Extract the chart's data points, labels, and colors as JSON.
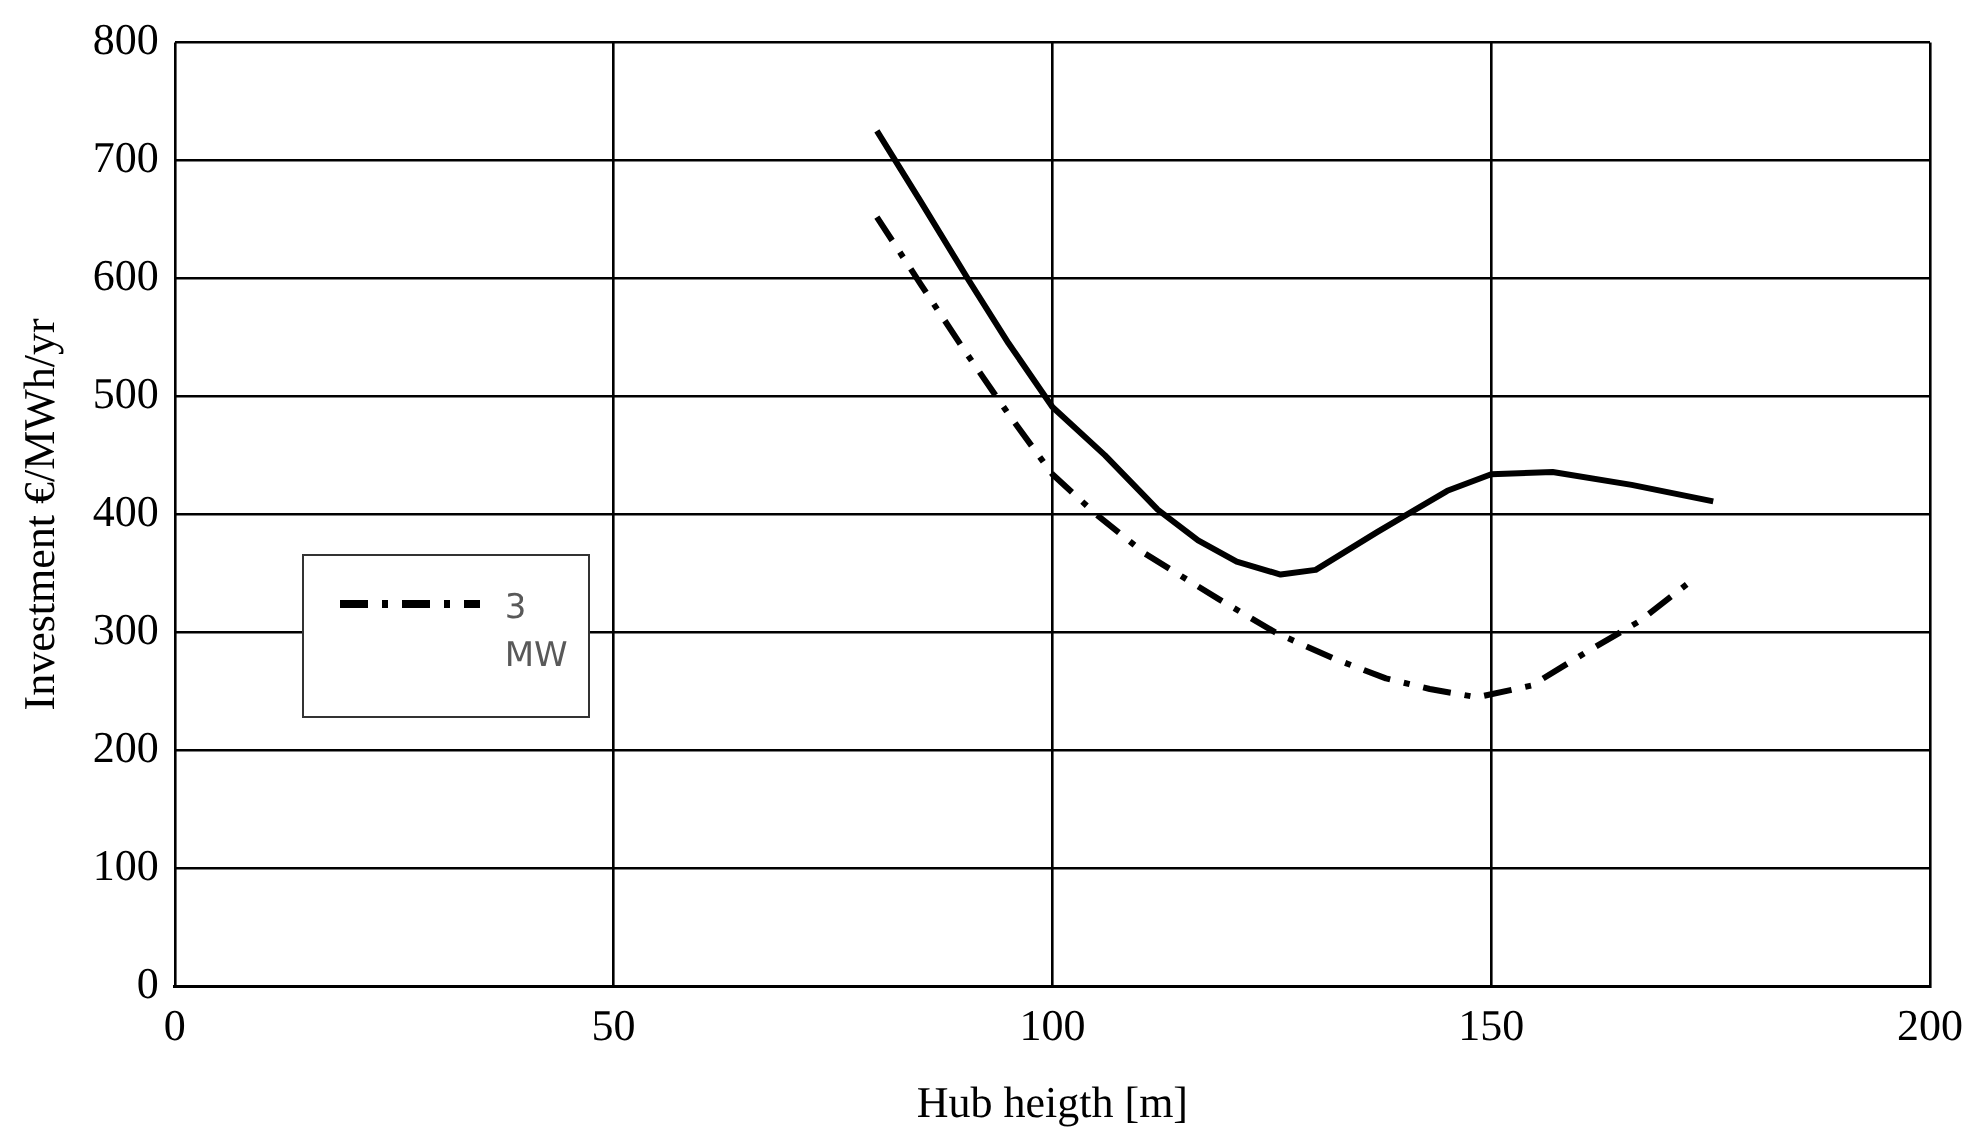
{
  "chart_data": {
    "type": "line",
    "xlabel": "Hub heigth [m]",
    "ylabel": "Investment €/MWh/yr",
    "xlim": [
      0,
      200
    ],
    "xticks": [
      0,
      50,
      100,
      150,
      200
    ],
    "ylim": [
      0,
      800
    ],
    "yticks": [
      0,
      100,
      200,
      300,
      400,
      500,
      600,
      700,
      800
    ],
    "grid": true,
    "legend": "left",
    "marker": "none",
    "series": [
      {
        "color": "#000000",
        "line_style": "solid",
        "x": [
          80,
          85,
          90.5,
          95,
          100,
          106,
          112,
          116.6,
          121,
          126,
          130,
          137,
          145,
          150,
          157,
          166,
          175.3
        ],
        "values": [
          725,
          665,
          598,
          545,
          491,
          450,
          404,
          378,
          360,
          349,
          353,
          385,
          420,
          434,
          436,
          425,
          411
        ]
      },
      {
        "name": "3 MW",
        "color": "#000000",
        "line_style": "dashdot",
        "x": [
          80,
          85,
          89.8,
          95,
          100,
          105,
          110.5,
          119,
          125.4,
          132,
          138,
          143,
          148.4,
          154.6,
          161,
          167,
          172.5
        ],
        "values": [
          652,
          595,
          541,
          485,
          434,
          400,
          367,
          328,
          300,
          278,
          261,
          252,
          245,
          255,
          284,
          310,
          342
        ]
      }
    ]
  }
}
